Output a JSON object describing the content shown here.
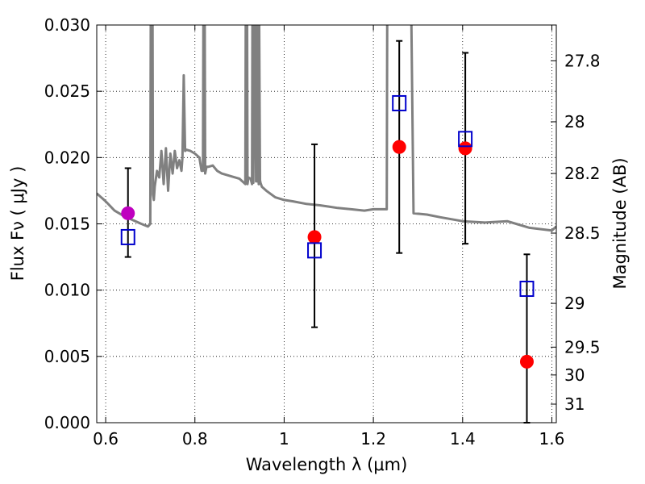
{
  "chart_data": {
    "type": "scatter",
    "xlabel": "Wavelength  λ (μm)",
    "ylabel": "Flux  Fν  ( μJy )",
    "ylabel2": "Magnitude (AB)",
    "xlim": [
      0.58,
      1.61
    ],
    "ylim": [
      0,
      0.03
    ],
    "grid": true,
    "x_ticks": [
      {
        "value": 0.6,
        "label": "0.6"
      },
      {
        "value": 0.8,
        "label": "0.8"
      },
      {
        "value": 1.0,
        "label": "1"
      },
      {
        "value": 1.2,
        "label": "1.2"
      },
      {
        "value": 1.4,
        "label": "1.4"
      },
      {
        "value": 1.6,
        "label": "1.6"
      }
    ],
    "y_ticks": [
      {
        "value": 0.0,
        "label": "0.000"
      },
      {
        "value": 0.005,
        "label": "0.005"
      },
      {
        "value": 0.01,
        "label": "0.010"
      },
      {
        "value": 0.015,
        "label": "0.015"
      },
      {
        "value": 0.02,
        "label": "0.020"
      },
      {
        "value": 0.025,
        "label": "0.025"
      },
      {
        "value": 0.03,
        "label": "0.030"
      }
    ],
    "right_ticks": [
      {
        "label": "27.8",
        "y_value": 0.0273
      },
      {
        "label": "28",
        "y_value": 0.0227
      },
      {
        "label": "28.2",
        "y_value": 0.0188
      },
      {
        "label": "28.5",
        "y_value": 0.0143
      },
      {
        "label": "29",
        "y_value": 0.009
      },
      {
        "label": "29.5",
        "y_value": 0.0057
      },
      {
        "label": "30",
        "y_value": 0.0036
      },
      {
        "label": "31",
        "y_value": 0.0014
      }
    ],
    "colors": {
      "model": "#808080",
      "observed": "#ff0000",
      "observed_first": "#bf00bf",
      "model_points": "#0000cc",
      "errorbar": "#000000"
    },
    "model_sed": {
      "x": [
        0.58,
        0.6,
        0.62,
        0.64,
        0.66,
        0.68,
        0.695,
        0.7,
        0.701,
        0.705,
        0.706,
        0.708,
        0.71,
        0.715,
        0.72,
        0.725,
        0.73,
        0.735,
        0.74,
        0.745,
        0.75,
        0.755,
        0.76,
        0.765,
        0.77,
        0.772,
        0.775,
        0.778,
        0.78,
        0.79,
        0.8,
        0.81,
        0.815,
        0.818,
        0.819,
        0.822,
        0.823,
        0.826,
        0.83,
        0.84,
        0.85,
        0.86,
        0.88,
        0.9,
        0.913,
        0.914,
        0.917,
        0.918,
        0.92,
        0.925,
        0.928,
        0.929,
        0.931,
        0.934,
        0.935,
        0.937,
        0.938,
        0.94,
        0.941,
        0.943,
        0.944,
        0.946,
        0.947,
        0.95,
        0.96,
        0.98,
        1.0,
        1.02,
        1.05,
        1.08,
        1.1,
        1.12,
        1.15,
        1.18,
        1.2,
        1.23,
        1.231,
        1.235,
        1.285,
        1.29,
        1.32,
        1.35,
        1.4,
        1.45,
        1.5,
        1.52,
        1.55,
        1.6,
        1.61
      ],
      "y": [
        0.0173,
        0.0167,
        0.016,
        0.0156,
        0.0153,
        0.015,
        0.0148,
        0.015,
        0.031,
        0.031,
        0.0172,
        0.0168,
        0.0178,
        0.019,
        0.0185,
        0.0205,
        0.018,
        0.0207,
        0.0175,
        0.0203,
        0.0188,
        0.0205,
        0.0192,
        0.0198,
        0.019,
        0.02,
        0.0262,
        0.0205,
        0.0206,
        0.0205,
        0.0203,
        0.02,
        0.019,
        0.019,
        0.031,
        0.031,
        0.0188,
        0.0193,
        0.0193,
        0.0194,
        0.019,
        0.0188,
        0.0186,
        0.0184,
        0.018,
        0.031,
        0.031,
        0.018,
        0.0185,
        0.0184,
        0.018,
        0.031,
        0.0181,
        0.031,
        0.031,
        0.0182,
        0.031,
        0.0182,
        0.031,
        0.018,
        0.031,
        0.0183,
        0.0181,
        0.0178,
        0.0175,
        0.017,
        0.0168,
        0.0167,
        0.0165,
        0.0164,
        0.0163,
        0.0162,
        0.0161,
        0.016,
        0.0161,
        0.0161,
        0.031,
        0.031,
        0.031,
        0.0158,
        0.0157,
        0.0155,
        0.0152,
        0.0151,
        0.0152,
        0.015,
        0.0147,
        0.0145,
        0.0148
      ]
    },
    "observed": [
      {
        "x": 0.65,
        "y": 0.0158,
        "yerr_low": 0.0033,
        "yerr_high": 0.0034
      },
      {
        "x": 1.068,
        "y": 0.014,
        "yerr_low": 0.0068,
        "yerr_high": 0.007
      },
      {
        "x": 1.258,
        "y": 0.0208,
        "yerr_low": 0.008,
        "yerr_high": 0.008
      },
      {
        "x": 1.406,
        "y": 0.0207,
        "yerr_low": 0.0072,
        "yerr_high": 0.0072
      },
      {
        "x": 1.544,
        "y": 0.0046,
        "yerr_low": 0.0046,
        "yerr_high": 0.0081
      }
    ],
    "model_points": [
      {
        "x": 0.65,
        "y": 0.014
      },
      {
        "x": 1.068,
        "y": 0.013
      },
      {
        "x": 1.258,
        "y": 0.0241
      },
      {
        "x": 1.406,
        "y": 0.0214
      },
      {
        "x": 1.544,
        "y": 0.0101
      }
    ]
  }
}
